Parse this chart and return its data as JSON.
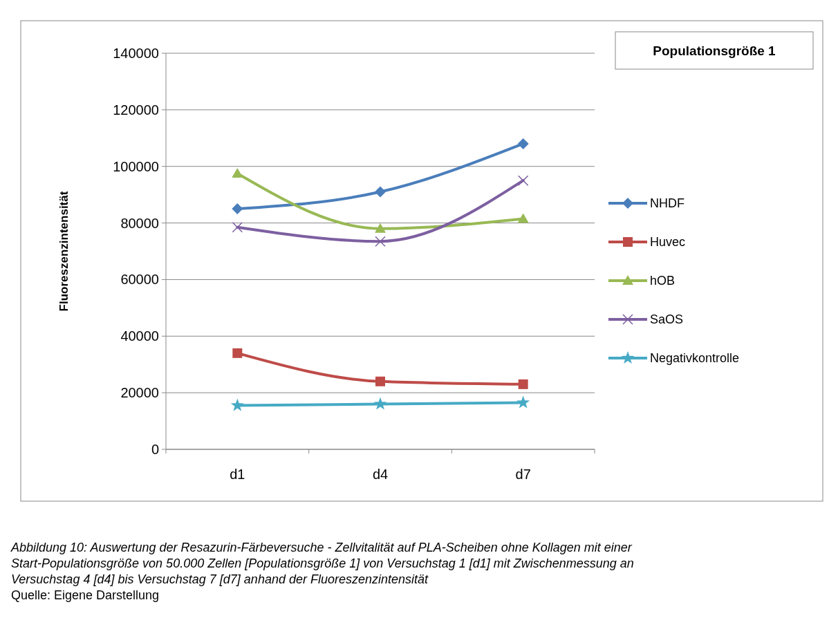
{
  "chart_data": {
    "type": "line",
    "title": "Populationsgröße 1",
    "ylabel": "Fluoreszenzintensität",
    "categories": [
      "d1",
      "d4",
      "d7"
    ],
    "series": [
      {
        "name": "NHDF",
        "color": "#4a7ebb",
        "marker": "diamond",
        "values": [
          85000,
          91000,
          108000
        ]
      },
      {
        "name": "Huvec",
        "color": "#be4b48",
        "marker": "square",
        "values": [
          34000,
          24000,
          23000
        ]
      },
      {
        "name": "hOB",
        "color": "#98b954",
        "marker": "triangle",
        "values": [
          97500,
          78000,
          81500
        ]
      },
      {
        "name": "SaOS",
        "color": "#7d5fa0",
        "marker": "cross",
        "values": [
          78500,
          73500,
          95000
        ]
      },
      {
        "name": "Negativkontrolle",
        "color": "#46aac5",
        "marker": "star",
        "values": [
          15500,
          16000,
          16500
        ]
      }
    ],
    "ylim": [
      0,
      140000
    ],
    "yticks": [
      0,
      20000,
      40000,
      60000,
      80000,
      100000,
      120000,
      140000
    ],
    "grid": "y",
    "legend": "right",
    "annotations": [
      "Abbildung 10: Auswertung der Resazurin-Färbeversuche - Zellvitalität auf PLA-Scheiben ohne Kollagen mit einer Start-Populationsgröße von 50.000 Zellen [Populationsgröße 1] von Versuchstag 1 [d1] mit Zwischenmessung an Versuchstag 4 [d4] bis Versuchstag 7 [d7] anhand der Fluoreszenzintensität",
      "Quelle: Eigene Darstellung"
    ]
  }
}
